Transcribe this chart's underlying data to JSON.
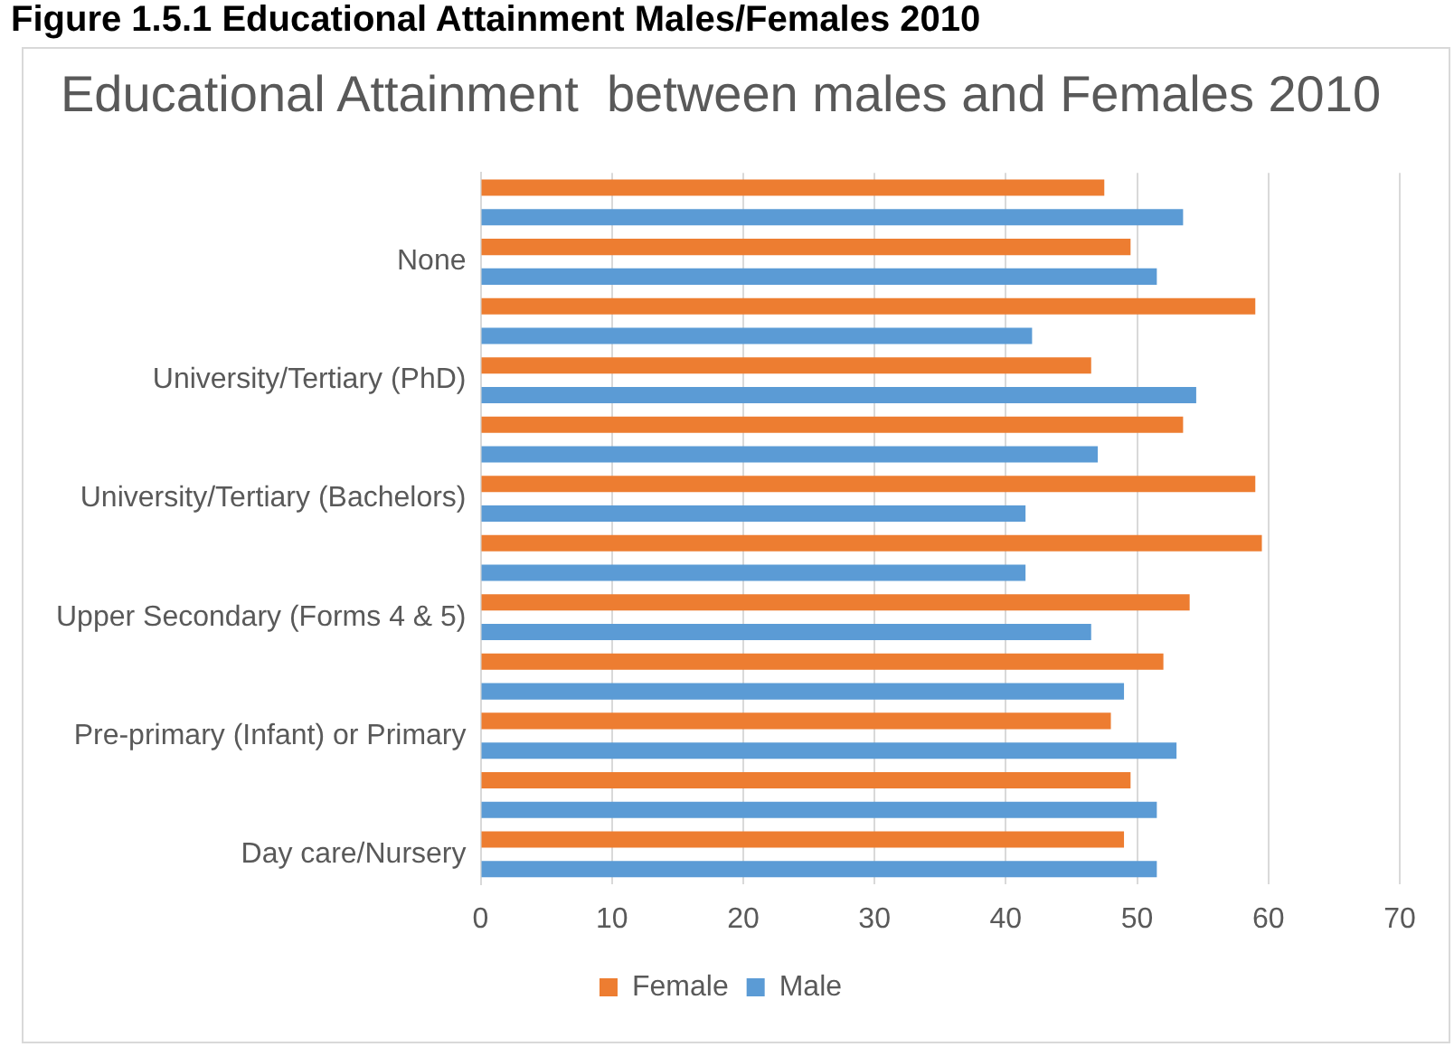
{
  "chart_data": {
    "type": "bar",
    "orientation": "horizontal",
    "title": "Educational Attainment  between males and Females 2010",
    "annotations": [
      "Figure 1.5.1 Educational Attainment Males/Females 2010"
    ],
    "categories": [
      null,
      "None",
      null,
      "University/Tertiary (PhD)",
      null,
      "University/Tertiary (Bachelors)",
      null,
      "Upper Secondary (Forms 4 & 5)",
      null,
      "Pre-primary (Infant) or Primary",
      null,
      "Day care/Nursery"
    ],
    "series": [
      {
        "name": "Female",
        "color": "#ed7d31",
        "values": [
          47.5,
          49.5,
          59,
          46.5,
          53.5,
          59,
          59.5,
          54,
          52,
          48,
          49.5,
          49
        ]
      },
      {
        "name": "Male",
        "color": "#5b9bd5",
        "values": [
          53.5,
          51.5,
          42,
          54.5,
          47,
          41.5,
          41.5,
          46.5,
          49,
          53,
          51.5,
          51.5
        ]
      }
    ],
    "xlim": [
      0,
      70
    ],
    "xticks": [
      0,
      10,
      20,
      30,
      40,
      50,
      60,
      70
    ],
    "grid": "x",
    "legend": "bottom"
  }
}
